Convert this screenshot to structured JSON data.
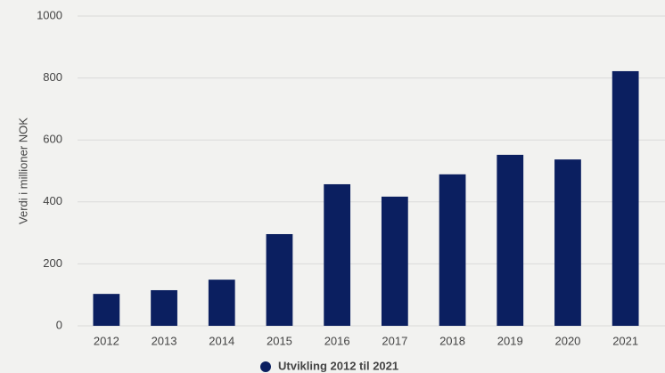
{
  "chart_data": {
    "type": "bar",
    "ylabel": "Verdi i millioner NOK",
    "categories": [
      "2012",
      "2013",
      "2014",
      "2015",
      "2016",
      "2017",
      "2018",
      "2019",
      "2020",
      "2021"
    ],
    "series": [
      {
        "name": "Utvikling 2012 til 2021",
        "color": "#0b1f60",
        "values": [
          103,
          115,
          149,
          296,
          457,
          417,
          489,
          552,
          537,
          822
        ]
      }
    ],
    "ylim": [
      0,
      1000
    ],
    "yticks": [
      0,
      200,
      400,
      600,
      800,
      1000
    ],
    "grid": true,
    "legend": "bottom"
  }
}
